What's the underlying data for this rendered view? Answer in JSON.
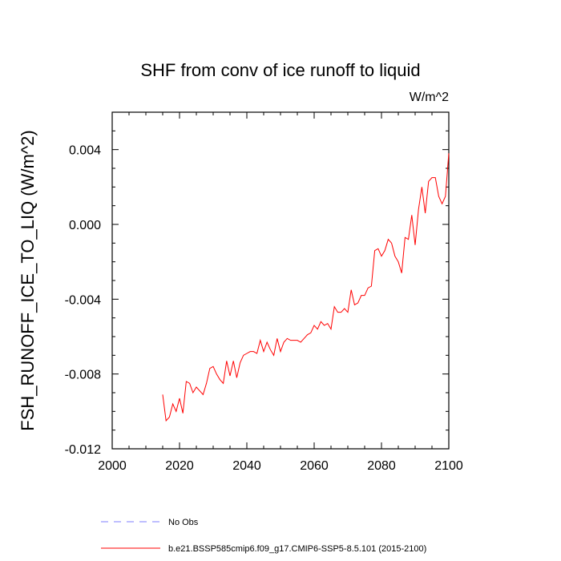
{
  "chart_data": {
    "type": "line",
    "title": "SHF from conv of ice runoff to liquid",
    "units_label": "W/m^2",
    "ylabel": "FSH_RUNOFF_ICE_TO_LIQ  (W/m^2)",
    "xlabel": "",
    "xlim": [
      2000,
      2100
    ],
    "ylim": [
      -0.012,
      0.006
    ],
    "x_major_ticks": [
      2000,
      2020,
      2040,
      2060,
      2080,
      2100
    ],
    "x_tick_labels": [
      "2000",
      "2020",
      "2040",
      "2060",
      "2080",
      "2100"
    ],
    "y_major_ticks": [
      -0.012,
      -0.008,
      -0.004,
      0.0,
      0.004
    ],
    "y_tick_labels": [
      "-0.012",
      "-0.008",
      "-0.004",
      "0.000",
      "0.004"
    ],
    "grid": false,
    "legend_position": "bottom",
    "legend": [
      {
        "label": "No Obs",
        "color": "#7f7fff",
        "style": "dashed"
      },
      {
        "label": "b.e21.BSSP585cmip6.f09_g17.CMIP6-SSP5-8.5.101 (2015-2100)",
        "color": "#ff0000",
        "style": "solid"
      }
    ],
    "series": [
      {
        "color": "#ff0000",
        "x": [
          2015,
          2016,
          2017,
          2018,
          2019,
          2020,
          2021,
          2022,
          2023,
          2024,
          2025,
          2026,
          2027,
          2028,
          2029,
          2030,
          2031,
          2032,
          2033,
          2034,
          2035,
          2036,
          2037,
          2038,
          2039,
          2040,
          2041,
          2042,
          2043,
          2044,
          2045,
          2046,
          2047,
          2048,
          2049,
          2050,
          2051,
          2052,
          2053,
          2054,
          2055,
          2056,
          2057,
          2058,
          2059,
          2060,
          2061,
          2062,
          2063,
          2064,
          2065,
          2066,
          2067,
          2068,
          2069,
          2070,
          2071,
          2072,
          2073,
          2074,
          2075,
          2076,
          2077,
          2078,
          2079,
          2080,
          2081,
          2082,
          2083,
          2084,
          2085,
          2086,
          2087,
          2088,
          2089,
          2090,
          2091,
          2092,
          2093,
          2094,
          2095,
          2096,
          2097,
          2098,
          2099,
          2100
        ],
        "values": [
          -0.0091,
          -0.0105,
          -0.0103,
          -0.0096,
          -0.01,
          -0.0093,
          -0.0101,
          -0.0084,
          -0.0085,
          -0.009,
          -0.0087,
          -0.0089,
          -0.0091,
          -0.0085,
          -0.0077,
          -0.0076,
          -0.008,
          -0.0083,
          -0.0085,
          -0.0073,
          -0.0081,
          -0.0073,
          -0.0082,
          -0.0074,
          -0.007,
          -0.0069,
          -0.0068,
          -0.0068,
          -0.0069,
          -0.0062,
          -0.0068,
          -0.0063,
          -0.0067,
          -0.007,
          -0.0061,
          -0.0068,
          -0.0063,
          -0.0061,
          -0.0062,
          -0.0062,
          -0.0062,
          -0.0063,
          -0.0061,
          -0.0059,
          -0.0058,
          -0.0054,
          -0.0056,
          -0.0052,
          -0.0054,
          -0.0053,
          -0.0056,
          -0.0044,
          -0.0047,
          -0.0047,
          -0.0045,
          -0.0047,
          -0.0035,
          -0.0043,
          -0.0042,
          -0.0038,
          -0.0038,
          -0.0034,
          -0.0033,
          -0.0014,
          -0.0013,
          -0.0017,
          -0.0014,
          -0.0008,
          -0.001,
          -0.0017,
          -0.002,
          -0.0026,
          -0.0007,
          -0.0008,
          0.0005,
          -0.0011,
          0.0008,
          0.002,
          0.0006,
          0.0023,
          0.0025,
          0.0025,
          0.0015,
          0.0011,
          0.0015,
          0.0038
        ]
      }
    ]
  }
}
